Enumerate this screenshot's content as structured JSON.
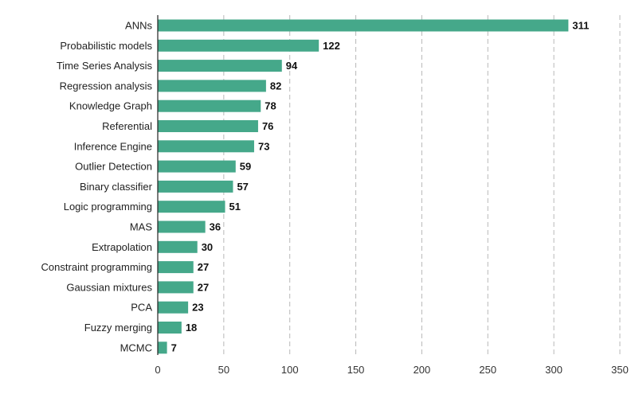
{
  "chart_data": {
    "type": "bar",
    "orientation": "horizontal",
    "title": "",
    "xlabel": "",
    "ylabel": "",
    "xlim": [
      0,
      350
    ],
    "xticks": [
      0,
      50,
      100,
      150,
      200,
      250,
      300,
      350
    ],
    "grid": true,
    "bar_color": "#45a88a",
    "categories": [
      "ANNs",
      "Probabilistic models",
      "Time Series Analysis",
      "Regression analysis",
      "Knowledge Graph",
      "Referential",
      "Inference Engine",
      "Outlier Detection",
      "Binary classifier",
      "Logic programming",
      "MAS",
      "Extrapolation",
      "Constraint programming",
      "Gaussian mixtures",
      "PCA",
      "Fuzzy merging",
      "MCMC"
    ],
    "values": [
      311,
      122,
      94,
      82,
      78,
      76,
      73,
      59,
      57,
      51,
      36,
      30,
      27,
      27,
      23,
      18,
      7
    ]
  }
}
